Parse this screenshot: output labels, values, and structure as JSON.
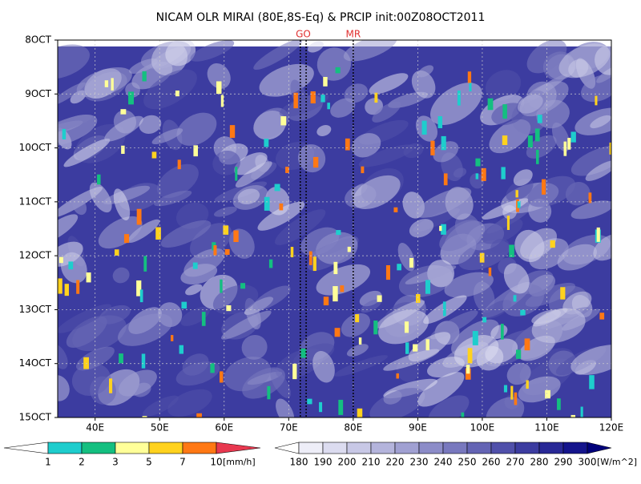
{
  "chart_data": {
    "type": "heatmap",
    "title": "NICAM OLR MIRAI (80E,8S-Eq) & PRCIP init:00Z08OCT2011",
    "xlim": [
      34.2,
      120
    ],
    "xticks": [
      {
        "value": 40,
        "label": "40E"
      },
      {
        "value": 50,
        "label": "50E"
      },
      {
        "value": 60,
        "label": "60E"
      },
      {
        "value": 70,
        "label": "70E"
      },
      {
        "value": 80,
        "label": "80E"
      },
      {
        "value": 90,
        "label": "90E"
      },
      {
        "value": 100,
        "label": "100E"
      },
      {
        "value": 110,
        "label": "110E"
      },
      {
        "value": 120,
        "label": "120E"
      }
    ],
    "ylim": [
      8,
      15
    ],
    "y_inverted": true,
    "yticks": [
      {
        "value": 8,
        "label": "8OCT"
      },
      {
        "value": 9,
        "label": "9OCT"
      },
      {
        "value": 10,
        "label": "10OCT"
      },
      {
        "value": 11,
        "label": "11OCT"
      },
      {
        "value": 12,
        "label": "12OCT"
      },
      {
        "value": 13,
        "label": "13OCT"
      },
      {
        "value": 14,
        "label": "14OCT"
      },
      {
        "value": 15,
        "label": "15OCT"
      }
    ],
    "grid": true,
    "markers": [
      {
        "label": "GO",
        "x": [
          71.8,
          72.7
        ]
      },
      {
        "label": "MR",
        "x": [
          80
        ]
      }
    ],
    "colorbars": [
      {
        "levels": [
          1,
          2,
          3,
          5,
          7,
          10
        ],
        "colors": [
          "#ffffff",
          "#1ecdcd",
          "#14bf80",
          "#ffff99",
          "#ffd21e",
          "#ff7814",
          "#e8384f"
        ],
        "unit": "[mm/h]"
      },
      {
        "levels": [
          180,
          190,
          200,
          210,
          220,
          230,
          240,
          250,
          260,
          270,
          280,
          290,
          300
        ],
        "colors": [
          "#ffffff",
          "#eeeef8",
          "#dcdcf0",
          "#c8c8e6",
          "#b4b4dc",
          "#a0a0d2",
          "#8c8cc8",
          "#7878be",
          "#6464b4",
          "#5050aa",
          "#3c3ca0",
          "#282896",
          "#14148c",
          "#00007a"
        ],
        "unit": "[W/m^2]"
      }
    ]
  }
}
